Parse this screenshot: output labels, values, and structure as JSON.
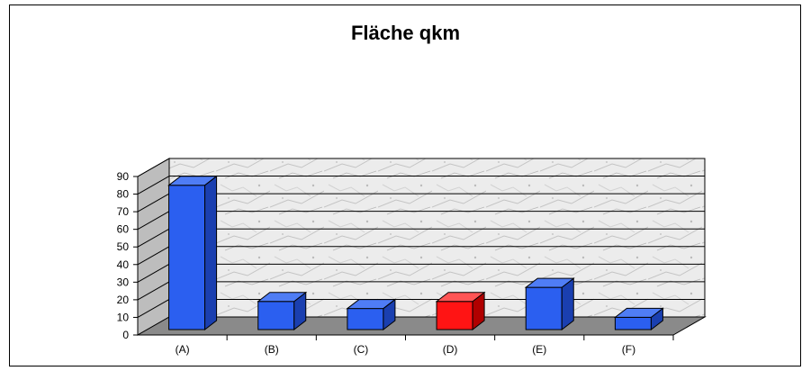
{
  "chart_data": {
    "type": "bar",
    "title": "Fläche qkm",
    "categories": [
      "(A)",
      "(B)",
      "(C)",
      "(D)",
      "(E)",
      "(F)"
    ],
    "values": [
      83,
      17,
      13,
      17,
      25,
      8
    ],
    "highlight_index": 3,
    "ylim": [
      0,
      90
    ],
    "yticks": [
      0,
      10,
      20,
      30,
      40,
      50,
      60,
      70,
      80,
      90
    ],
    "grid": true,
    "three_d": true,
    "colors": {
      "bar": "#2b5ff0",
      "bar_side": "#1a3fb0",
      "bar_top": "#4f7df5",
      "highlight": "#ff1414",
      "highlight_side": "#b00000",
      "highlight_top": "#ff5555",
      "floor": "#8a8a8a",
      "side_wall": "#bdbdbd"
    }
  }
}
